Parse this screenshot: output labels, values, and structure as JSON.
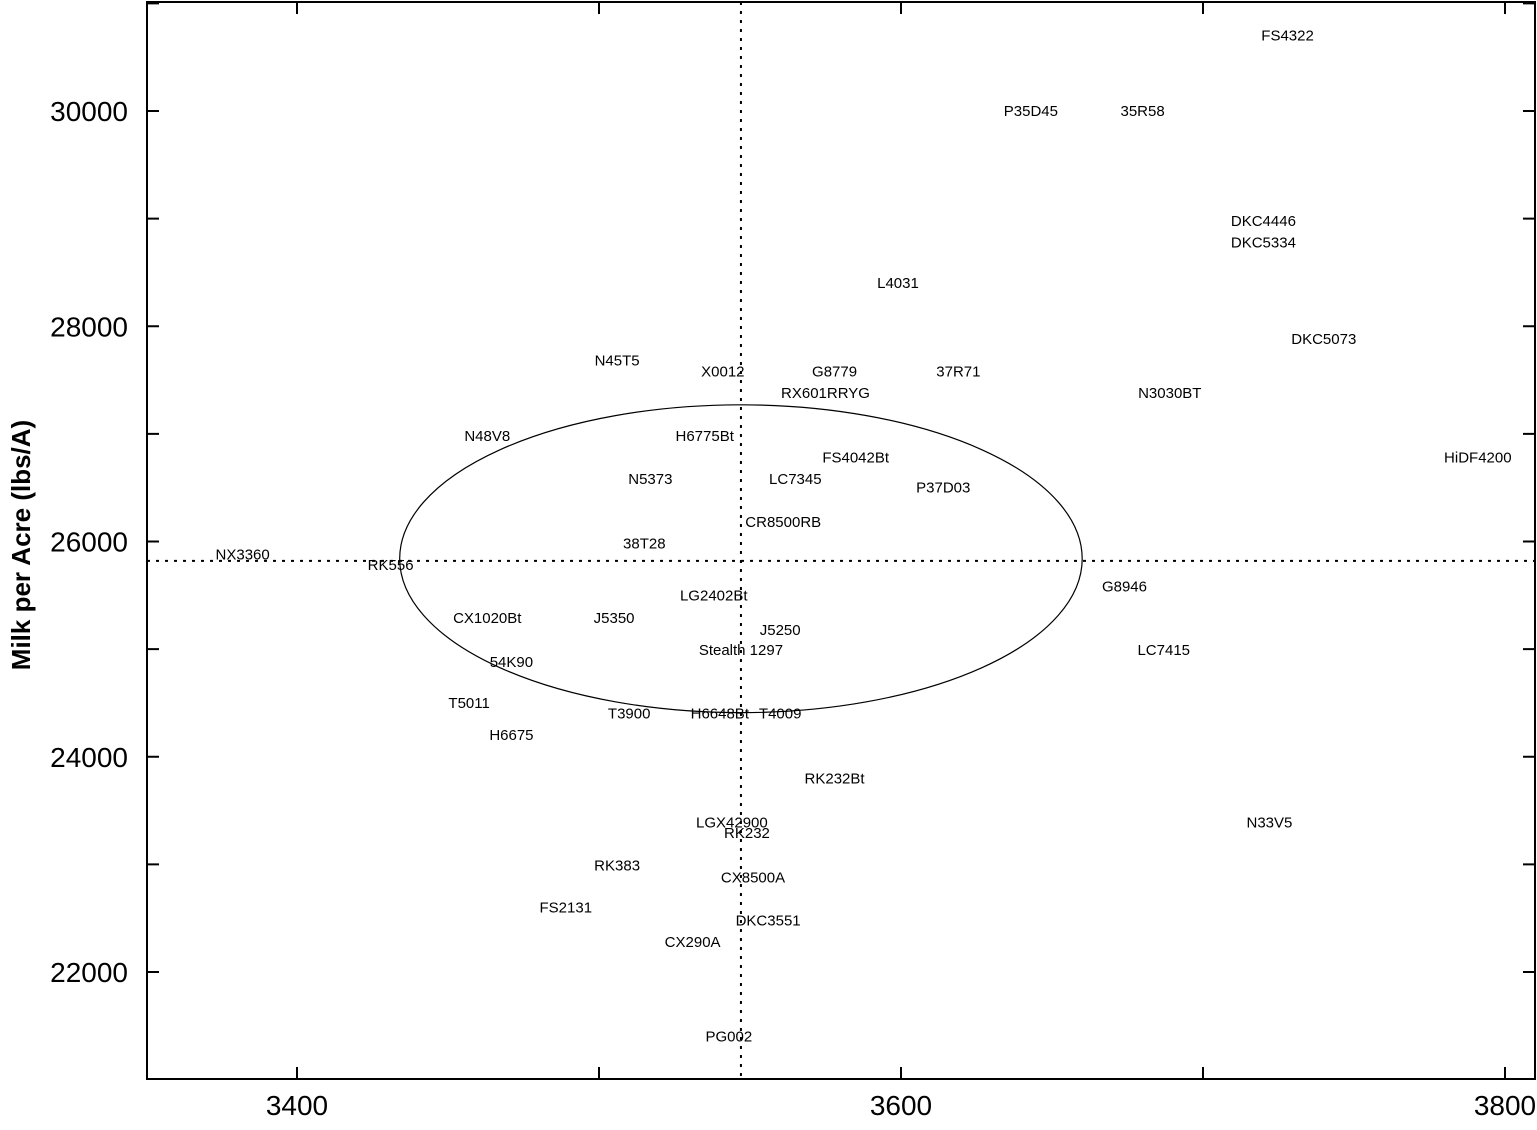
{
  "chart_data": {
    "type": "scatter",
    "title": "",
    "xlabel": "",
    "ylabel": "Milk per Acre (lbs/A)",
    "xlim": [
      3300,
      3820
    ],
    "ylim": [
      21050,
      30950
    ],
    "x_ticks": [
      "3400",
      "3600",
      "3800"
    ],
    "y_ticks": [
      "22000",
      "24000",
      "26000",
      "28000",
      "30000"
    ],
    "x_tick_values": [
      3400,
      3600,
      3800
    ],
    "y_tick_values": [
      22000,
      24000,
      26000,
      28000,
      30000
    ],
    "reference_lines": {
      "x": 3547,
      "y": 25820
    },
    "ellipse": {
      "center_x": 3547,
      "center_y": 25840,
      "radius_x": 113,
      "radius_y": 1430
    },
    "points": [
      {
        "label": "FS4322",
        "x": 3728,
        "y": 30700
      },
      {
        "label": "P35D45",
        "x": 3643,
        "y": 30000
      },
      {
        "label": "35R58",
        "x": 3680,
        "y": 30000
      },
      {
        "label": "DKC4446",
        "x": 3720,
        "y": 28980
      },
      {
        "label": "DKC5334",
        "x": 3720,
        "y": 28780
      },
      {
        "label": "L4031",
        "x": 3599,
        "y": 28400
      },
      {
        "label": "DKC5073",
        "x": 3740,
        "y": 27880
      },
      {
        "label": "N45T5",
        "x": 3506,
        "y": 27680
      },
      {
        "label": "X0012",
        "x": 3541,
        "y": 27580
      },
      {
        "label": "G8779",
        "x": 3578,
        "y": 27580
      },
      {
        "label": "37R71",
        "x": 3619,
        "y": 27580
      },
      {
        "label": "RX601RRYG",
        "x": 3575,
        "y": 27380
      },
      {
        "label": "N3030BT",
        "x": 3689,
        "y": 27380
      },
      {
        "label": "N48V8",
        "x": 3463,
        "y": 26980
      },
      {
        "label": "H6775Bt",
        "x": 3535,
        "y": 26980
      },
      {
        "label": "FS4042Bt",
        "x": 3585,
        "y": 26780
      },
      {
        "label": "HiDF4200",
        "x": 3791,
        "y": 26780
      },
      {
        "label": "N5373",
        "x": 3517,
        "y": 26580
      },
      {
        "label": "LC7345",
        "x": 3565,
        "y": 26580
      },
      {
        "label": "P37D03",
        "x": 3614,
        "y": 26500
      },
      {
        "label": "CR8500RB",
        "x": 3561,
        "y": 26180
      },
      {
        "label": "38T28",
        "x": 3515,
        "y": 25980
      },
      {
        "label": "NX3360",
        "x": 3382,
        "y": 25880
      },
      {
        "label": "RK556",
        "x": 3431,
        "y": 25780
      },
      {
        "label": "G8946",
        "x": 3674,
        "y": 25580
      },
      {
        "label": "LG2402Bt",
        "x": 3538,
        "y": 25500
      },
      {
        "label": "CX1020Bt",
        "x": 3463,
        "y": 25290
      },
      {
        "label": "J5350",
        "x": 3505,
        "y": 25290
      },
      {
        "label": "J5250",
        "x": 3560,
        "y": 25180
      },
      {
        "label": "Stealth 1297",
        "x": 3547,
        "y": 24990
      },
      {
        "label": "LC7415",
        "x": 3687,
        "y": 24990
      },
      {
        "label": "54K90",
        "x": 3471,
        "y": 24880
      },
      {
        "label": "T5011",
        "x": 3457,
        "y": 24500
      },
      {
        "label": "T3900",
        "x": 3510,
        "y": 24400
      },
      {
        "label": "H6648Bt",
        "x": 3540,
        "y": 24400
      },
      {
        "label": "T4009",
        "x": 3560,
        "y": 24400
      },
      {
        "label": "H6675",
        "x": 3471,
        "y": 24200
      },
      {
        "label": "RK232Bt",
        "x": 3578,
        "y": 23800
      },
      {
        "label": "LGX42900",
        "x": 3544,
        "y": 23390
      },
      {
        "label": "N33V5",
        "x": 3722,
        "y": 23390
      },
      {
        "label": "RK232",
        "x": 3549,
        "y": 23290
      },
      {
        "label": "RK383",
        "x": 3506,
        "y": 22990
      },
      {
        "label": "CX8500A",
        "x": 3551,
        "y": 22880
      },
      {
        "label": "FS2131",
        "x": 3489,
        "y": 22600
      },
      {
        "label": "DKC3551",
        "x": 3556,
        "y": 22480
      },
      {
        "label": "CX290A",
        "x": 3531,
        "y": 22280
      },
      {
        "label": "PG002",
        "x": 3543,
        "y": 21400
      }
    ]
  }
}
